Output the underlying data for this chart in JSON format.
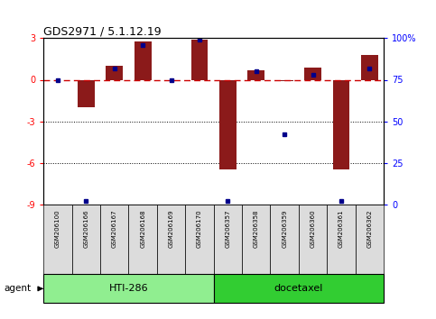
{
  "title": "GDS2971 / 5.1.12.19",
  "samples": [
    "GSM206100",
    "GSM206166",
    "GSM206167",
    "GSM206168",
    "GSM206169",
    "GSM206170",
    "GSM206357",
    "GSM206358",
    "GSM206359",
    "GSM206360",
    "GSM206361",
    "GSM206362"
  ],
  "log2_ratio": [
    0.0,
    -2.0,
    1.0,
    2.8,
    0.0,
    2.9,
    -6.5,
    0.7,
    -0.1,
    0.9,
    -6.5,
    1.8
  ],
  "percentile": [
    75,
    2,
    82,
    96,
    75,
    99,
    2,
    80,
    42,
    78,
    2,
    82
  ],
  "groups": [
    {
      "label": "HTI-286",
      "color": "#90EE90",
      "start": 0,
      "end": 5
    },
    {
      "label": "docetaxel",
      "color": "#3CB371",
      "start": 6,
      "end": 11
    }
  ],
  "ylim": [
    -9,
    3
  ],
  "yticks_left": [
    -9,
    -6,
    -3,
    0,
    3
  ],
  "yticks_right": [
    0,
    25,
    50,
    75,
    100
  ],
  "bar_color": "#8B1A1A",
  "dot_color": "#00008B",
  "zero_line_color": "#CC0000",
  "grid_color": "black",
  "legend_bar_color": "#CC0000",
  "legend_dot_color": "#00008B",
  "agent_label": "agent",
  "bg_color": "#DCDCDC",
  "group_color_1": "#90EE90",
  "group_color_2": "#32CD32"
}
